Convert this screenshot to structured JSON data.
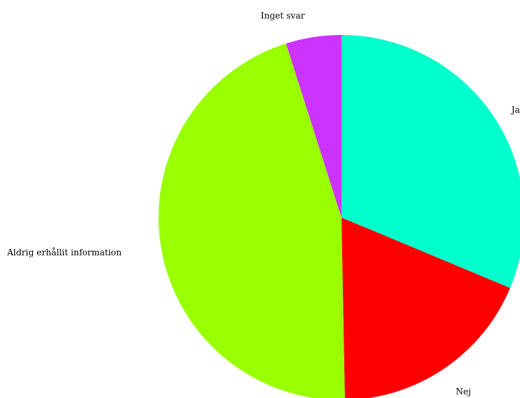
{
  "chart_data": {
    "type": "pie",
    "start_angle_deg": 0,
    "direction": "clockwise",
    "slices": [
      {
        "label": "Ja",
        "value": 31.3,
        "color": "#00ffcc"
      },
      {
        "label": "Nej",
        "value": 18.4,
        "color": "#ff0000"
      },
      {
        "label": "Aldrig erhållit information",
        "value": 45.4,
        "color": "#99ff00"
      },
      {
        "label": "Inget svar",
        "value": 4.9,
        "color": "#cc33ff"
      }
    ]
  }
}
